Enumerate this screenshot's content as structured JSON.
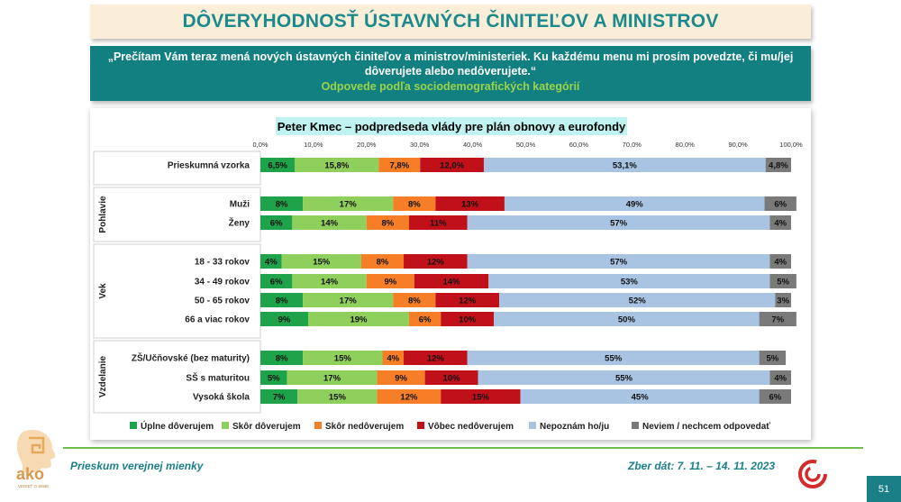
{
  "header": {
    "title": "DÔVERYHODNOSŤ ÚSTAVNÝCH ČINITEĽOV A MINISTROV",
    "quote": "„Prečítam Vám teraz mená nových ústavných činiteľov a ministrov/ministeriek. Ku každému menu mi prosím povedzte, či mu/jej dôverujete alebo nedôverujete.“",
    "subtitle": "Odpovede podľa sociodemografických kategórií"
  },
  "footer": {
    "left": "Prieskum verejnej mienky",
    "right": "Zber dát: 7. 11. – 14. 11. 2023",
    "page": "51",
    "logo_text": "ako",
    "logo_subtext": "VEDIEŤ O SEBE"
  },
  "colors": {
    "teal": "#127f81",
    "light_green": "#9ad34a",
    "series": [
      "#1fa34a",
      "#8fcf5c",
      "#f57e26",
      "#c0101a",
      "#a8c4e2",
      "#7a7a7a"
    ]
  },
  "chart_data": {
    "type": "bar",
    "orientation": "horizontal-stacked",
    "title": "Peter Kmec – podpredseda vlády pre plán obnovy a eurofondy",
    "xlim": [
      0,
      100
    ],
    "xticks": [
      "0,0%",
      "10,0%",
      "20,0%",
      "30,0%",
      "40,0%",
      "50,0%",
      "60,0%",
      "70,0%",
      "80,0%",
      "90,0%",
      "100,0%"
    ],
    "legend_position": "bottom",
    "series_names": [
      "Úplne dôverujem",
      "Skôr dôverujem",
      "Skôr nedôverujem",
      "Vôbec nedôverujem",
      "Nepoznám ho/ju",
      "Neviem / nechcem odpovedať"
    ],
    "groups": [
      {
        "label": "",
        "rows": [
          {
            "label": "Prieskumná vzorka",
            "values": [
              6.5,
              15.8,
              7.8,
              12.0,
              53.1,
              4.8
            ],
            "texts": [
              "6,5%",
              "15,8%",
              "7,8%",
              "12,0%",
              "53,1%",
              "4,8%"
            ]
          }
        ]
      },
      {
        "label": "Pohlavie",
        "rows": [
          {
            "label": "Muži",
            "values": [
              8,
              17,
              8,
              13,
              49,
              6
            ],
            "texts": [
              "8%",
              "17%",
              "8%",
              "13%",
              "49%",
              "6%"
            ]
          },
          {
            "label": "Ženy",
            "values": [
              6,
              14,
              8,
              11,
              57,
              4
            ],
            "texts": [
              "6%",
              "14%",
              "8%",
              "11%",
              "57%",
              "4%"
            ]
          }
        ]
      },
      {
        "label": "Vek",
        "rows": [
          {
            "label": "18 - 33 rokov",
            "values": [
              4,
              15,
              8,
              12,
              57,
              4
            ],
            "texts": [
              "4%",
              "15%",
              "8%",
              "12%",
              "57%",
              "4%"
            ]
          },
          {
            "label": "34 - 49 rokov",
            "values": [
              6,
              14,
              9,
              14,
              53,
              5
            ],
            "texts": [
              "6%",
              "14%",
              "9%",
              "14%",
              "53%",
              "5%"
            ]
          },
          {
            "label": "50 - 65 rokov",
            "values": [
              8,
              17,
              8,
              12,
              52,
              3
            ],
            "texts": [
              "8%",
              "17%",
              "8%",
              "12%",
              "52%",
              "3%"
            ]
          },
          {
            "label": "66 a viac rokov",
            "values": [
              9,
              19,
              6,
              10,
              50,
              7
            ],
            "texts": [
              "9%",
              "19%",
              "6%",
              "10%",
              "50%",
              "7%"
            ]
          }
        ]
      },
      {
        "label": "Vzdelanie",
        "rows": [
          {
            "label": "ZŠ/Učňovské (bez maturity)",
            "values": [
              8,
              15,
              4,
              12,
              55,
              5
            ],
            "texts": [
              "8%",
              "15%",
              "4%",
              "12%",
              "55%",
              "5%"
            ]
          },
          {
            "label": "SŠ s maturitou",
            "values": [
              5,
              17,
              9,
              10,
              55,
              4
            ],
            "texts": [
              "5%",
              "17%",
              "9%",
              "10%",
              "55%",
              "4%"
            ]
          },
          {
            "label": "Vysoká škola",
            "values": [
              7,
              15,
              12,
              15,
              45,
              6
            ],
            "texts": [
              "7%",
              "15%",
              "12%",
              "15%",
              "45%",
              "6%"
            ]
          }
        ]
      }
    ]
  }
}
